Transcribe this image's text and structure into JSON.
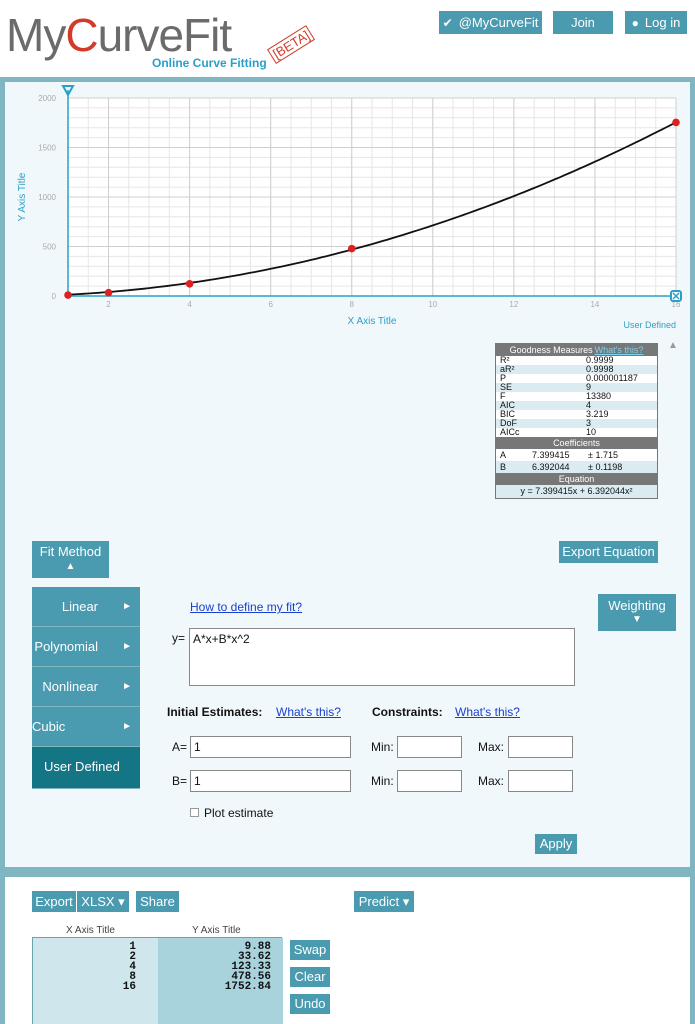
{
  "header": {
    "logo_prefix": "My",
    "logo_red": "C",
    "logo_rest": "urveFit",
    "logo_subtitle": "Online Curve Fitting",
    "logo_beta": "[BETA]",
    "twitter_label": "@MyCurveFit",
    "join_label": "Join",
    "login_label": "Log in"
  },
  "chart_data": {
    "type": "scatter",
    "xlabel": "X Axis Title",
    "ylabel": "Y Axis Title",
    "xlim": [
      1,
      16
    ],
    "ylim": [
      0,
      2000
    ],
    "x_ticks": [
      2,
      4,
      6,
      8,
      10,
      12,
      14,
      16
    ],
    "y_ticks": [
      0,
      500,
      1000,
      1500,
      2000
    ],
    "grid": true,
    "legend_note": "User Defined",
    "series": [
      {
        "x": [
          1,
          2,
          4,
          8,
          16
        ],
        "y": [
          9.88,
          33.62,
          123.33,
          478.56,
          1752.84
        ]
      }
    ],
    "fit": {
      "A": 7.399415,
      "B": 6.392044
    }
  },
  "stats": {
    "goodness_title": "Goodness Measures",
    "whats_this": "What's this?",
    "measures": [
      {
        "k": "R²",
        "v": "0.9999"
      },
      {
        "k": "aR²",
        "v": "0.9998"
      },
      {
        "k": "P",
        "v": "0.000001187"
      },
      {
        "k": "SE",
        "v": "9"
      },
      {
        "k": "F",
        "v": "13380"
      },
      {
        "k": "AIC",
        "v": "4"
      },
      {
        "k": "BIC",
        "v": "3.219"
      },
      {
        "k": "DoF",
        "v": "3"
      },
      {
        "k": "AICc",
        "v": "10"
      }
    ],
    "coef_title": "Coefficients",
    "coefficients": [
      {
        "k": "A",
        "v": "7.399415",
        "e": "± 1.715"
      },
      {
        "k": "B",
        "v": "6.392044",
        "e": "± 0.1198"
      }
    ],
    "eq_title": "Equation",
    "equation": "y = 7.399415x + 6.392044x²"
  },
  "fit_panel": {
    "export_equation": "Export Equation",
    "fit_method": "Fit Method",
    "weighting": "Weighting",
    "methods": [
      "Linear",
      "Polynomial",
      "Nonlinear",
      "Cubic Spline",
      "User Defined"
    ],
    "arrow": "►",
    "how_link": "How to define my fit?",
    "y_eq": "y=",
    "formula": "A*x+B*x^2",
    "initial_estimates": "Initial Estimates:",
    "whats_this_1": "What's this?",
    "constraints": "Constraints:",
    "whats_this_2": "What's this?",
    "a_label": "A=",
    "a_value": "1",
    "b_label": "B=",
    "b_value": "1",
    "min_label": "Min:",
    "max_label": "Max:",
    "plot_estimate": "Plot estimate",
    "apply": "Apply"
  },
  "data_panel": {
    "export": "Export",
    "xlsx": "XLSX ▾",
    "share": "Share",
    "predict": "Predict ▾",
    "x_header": "X Axis Title",
    "y_header": "Y Axis Title",
    "x_values": [
      "1",
      "2",
      "4",
      "8",
      "16"
    ],
    "y_values": [
      "9.88",
      "33.62",
      "123.33",
      "478.56",
      "1752.84"
    ],
    "swap": "Swap",
    "clear": "Clear",
    "undo": "Undo"
  },
  "colors": {
    "accent": "#4a9ab0",
    "active": "#147585",
    "point": "#e02020"
  }
}
